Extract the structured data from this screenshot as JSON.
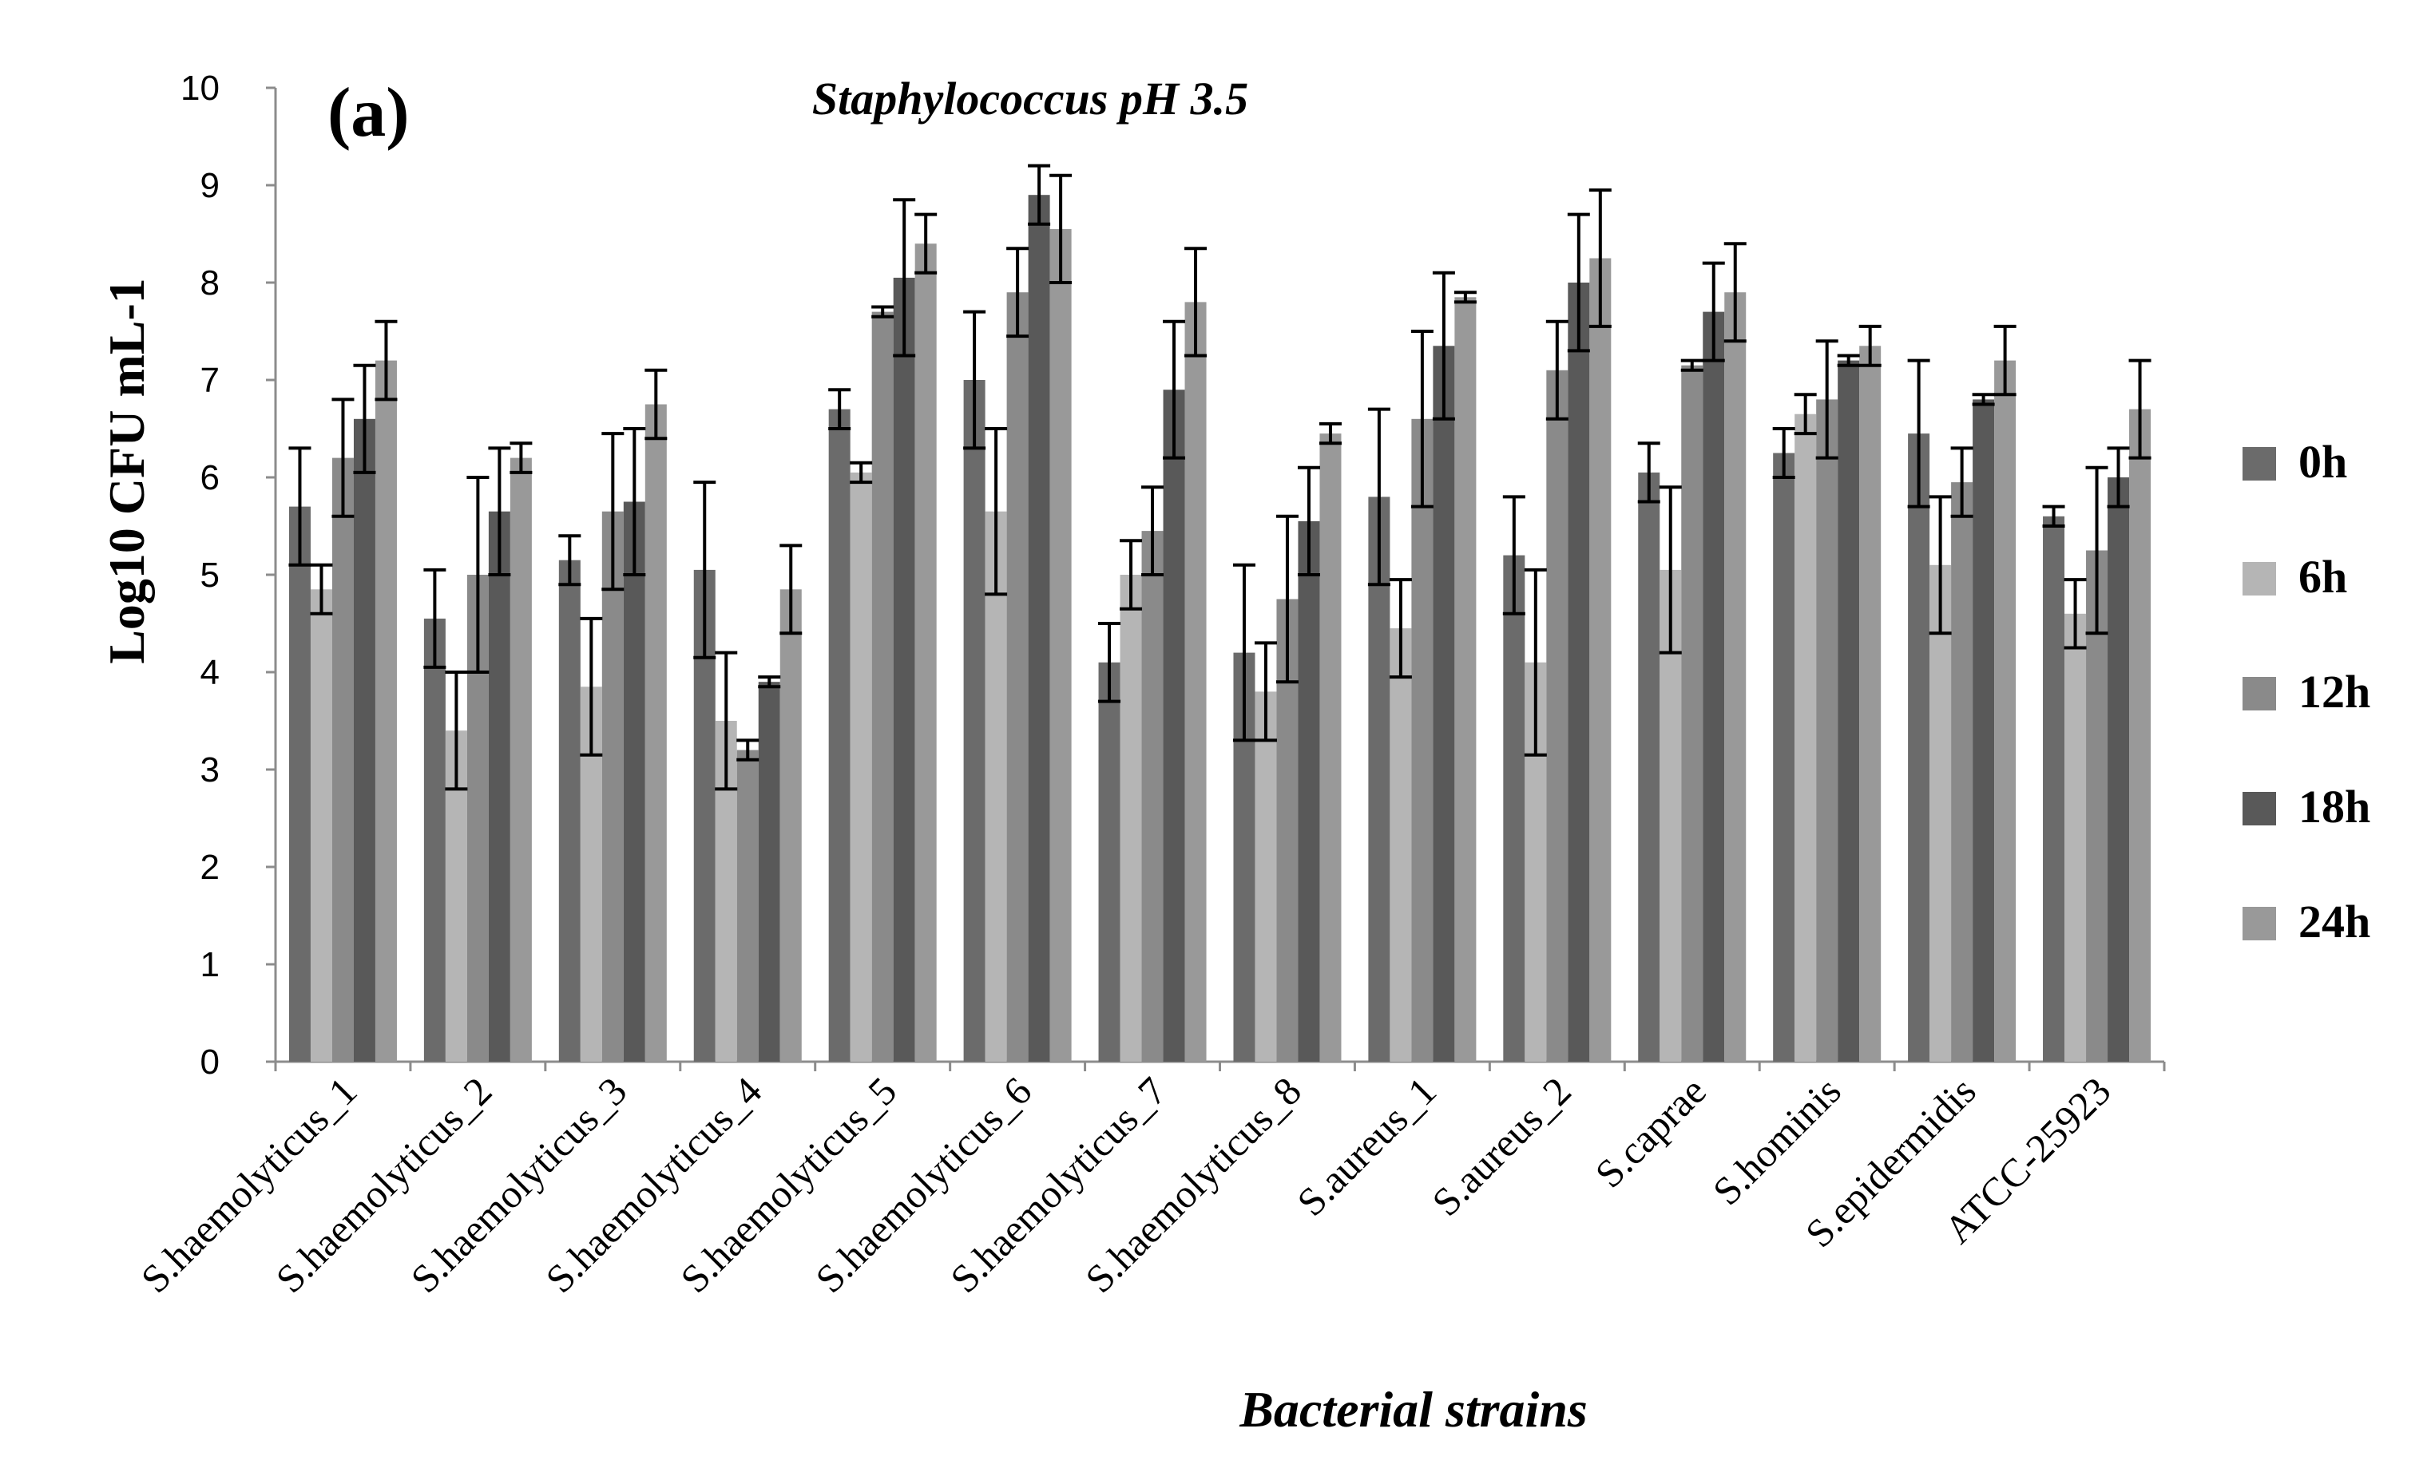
{
  "chart_data": {
    "type": "bar",
    "panel_label": "(a)",
    "title": "Staphylococcus pH 3.5",
    "xlabel": "Bacterial strains",
    "ylabel": "Log10 CFU mL-1",
    "ylim": [
      0,
      10
    ],
    "yticks": [
      "0",
      "1",
      "2",
      "3",
      "4",
      "5",
      "6",
      "7",
      "8",
      "9",
      "10"
    ],
    "grid": false,
    "legend_position": "right",
    "categories": [
      "S.haemolyticus_1",
      "S.haemolyticus_2",
      "S.haemolyticus_3",
      "S.haemolyticus_4",
      "S.haemolyticus_5",
      "S.haemolyticus_6",
      "S.haemolyticus_7",
      "S.haemolyticus_8",
      "S.aureus_1",
      "S.aureus_2",
      "S.caprae",
      "S.hominis",
      "S.epidermidis",
      "ATCC-25923"
    ],
    "series": [
      {
        "name": "0h",
        "color": "#6b6b6b",
        "values": [
          5.7,
          4.55,
          5.15,
          5.05,
          6.7,
          7.0,
          4.1,
          4.2,
          5.8,
          5.2,
          6.05,
          6.25,
          6.45,
          5.6
        ],
        "errors": [
          0.6,
          0.5,
          0.25,
          0.9,
          0.2,
          0.7,
          0.4,
          0.9,
          0.9,
          0.6,
          0.3,
          0.25,
          0.75,
          0.1
        ]
      },
      {
        "name": "6h",
        "color": "#b5b5b5",
        "values": [
          4.85,
          3.4,
          3.85,
          3.5,
          6.05,
          5.65,
          5.0,
          3.8,
          4.45,
          4.1,
          5.05,
          6.65,
          5.1,
          4.6
        ],
        "errors": [
          0.25,
          0.6,
          0.7,
          0.7,
          0.1,
          0.85,
          0.35,
          0.5,
          0.5,
          0.95,
          0.85,
          0.2,
          0.7,
          0.35
        ]
      },
      {
        "name": "12h",
        "color": "#8a8a8a",
        "values": [
          6.2,
          5.0,
          5.65,
          3.2,
          7.7,
          7.9,
          5.45,
          4.75,
          6.6,
          7.1,
          7.15,
          6.8,
          5.95,
          5.25
        ],
        "errors": [
          0.6,
          1.0,
          0.8,
          0.1,
          0.05,
          0.45,
          0.45,
          0.85,
          0.9,
          0.5,
          0.05,
          0.6,
          0.35,
          0.85
        ]
      },
      {
        "name": "18h",
        "color": "#595959",
        "values": [
          6.6,
          5.65,
          5.75,
          3.9,
          8.05,
          8.9,
          6.9,
          5.55,
          7.35,
          8.0,
          7.7,
          7.2,
          6.8,
          6.0
        ],
        "errors": [
          0.55,
          0.65,
          0.75,
          0.05,
          0.8,
          0.3,
          0.7,
          0.55,
          0.75,
          0.7,
          0.5,
          0.05,
          0.05,
          0.3
        ]
      },
      {
        "name": "24h",
        "color": "#999999",
        "values": [
          7.2,
          6.2,
          6.75,
          4.85,
          8.4,
          8.55,
          7.8,
          6.45,
          7.85,
          8.25,
          7.9,
          7.35,
          7.2,
          6.7
        ],
        "errors": [
          0.4,
          0.15,
          0.35,
          0.45,
          0.3,
          0.55,
          0.55,
          0.1,
          0.05,
          0.7,
          0.5,
          0.2,
          0.35,
          0.5
        ]
      }
    ]
  }
}
